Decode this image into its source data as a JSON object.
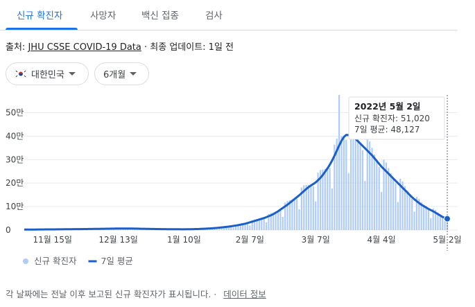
{
  "tabs": [
    "신규 확진자",
    "사망자",
    "백신 접종",
    "검사"
  ],
  "source": {
    "prefix": "출처:",
    "link": "JHU CSSE COVID-19 Data",
    "updated": "· 최종 업데이트: 1일 전"
  },
  "filters": [
    "대한민국",
    "6개월"
  ],
  "chart_data": {
    "type": "bar",
    "categories": [
      null,
      null,
      null,
      null,
      null,
      null,
      null,
      null,
      null,
      null,
      null,
      null,
      "11월 15일",
      null,
      null,
      null,
      null,
      null,
      null,
      null,
      null,
      null,
      null,
      null,
      null,
      null,
      null,
      null,
      null,
      null,
      null,
      null,
      null,
      null,
      null,
      null,
      null,
      null,
      null,
      null,
      "12월 13일",
      null,
      null,
      null,
      null,
      null,
      null,
      null,
      null,
      null,
      null,
      null,
      null,
      null,
      null,
      null,
      null,
      null,
      null,
      null,
      null,
      null,
      null,
      null,
      null,
      null,
      null,
      null,
      "1월 10일",
      null,
      null,
      null,
      null,
      null,
      null,
      null,
      null,
      null,
      null,
      null,
      null,
      null,
      null,
      null,
      null,
      null,
      null,
      null,
      null,
      null,
      null,
      null,
      null,
      null,
      null,
      null,
      "2월 7일",
      null,
      null,
      null,
      null,
      null,
      null,
      null,
      null,
      null,
      null,
      null,
      null,
      null,
      null,
      null,
      null,
      null,
      null,
      null,
      null,
      null,
      null,
      null,
      null,
      null,
      null,
      null,
      "3월 7일",
      null,
      null,
      null,
      null,
      null,
      null,
      null,
      null,
      null,
      null,
      null,
      null,
      null,
      null,
      null,
      null,
      null,
      null,
      null,
      null,
      null,
      null,
      null,
      null,
      null,
      null,
      null,
      "4월 4일",
      null,
      null,
      null,
      null,
      null,
      null,
      null,
      null,
      null,
      null,
      null,
      null,
      null,
      null,
      null,
      null,
      null,
      null,
      null,
      null,
      null,
      null,
      null,
      null,
      null,
      null,
      null,
      "5월 2일"
    ],
    "series": [
      {
        "name": "신규 확진자",
        "type": "bar",
        "color": "#aecbfa",
        "values": [
          2600,
          2600,
          2500,
          2400,
          2300,
          1400,
          2900,
          3000,
          3000,
          2900,
          2900,
          2900,
          1800,
          3600,
          3700,
          3600,
          3600,
          3500,
          3400,
          2200,
          4400,
          4500,
          4400,
          4300,
          4200,
          4200,
          2700,
          5300,
          5500,
          5400,
          5300,
          5100,
          5000,
          3300,
          6400,
          6700,
          6600,
          6400,
          6300,
          6200,
          4000,
          7700,
          7800,
          7500,
          7000,
          6600,
          6200,
          3800,
          7000,
          6800,
          6300,
          5800,
          5300,
          4800,
          2900,
          5400,
          5200,
          4700,
          4400,
          4000,
          3700,
          2300,
          4300,
          4100,
          4000,
          3700,
          3500,
          3200,
          2000,
          4000,
          4100,
          4200,
          4200,
          4300,
          4400,
          3000,
          6300,
          6900,
          7300,
          7600,
          7900,
          8200,
          5600,
          11800,
          13000,
          13600,
          14300,
          14900,
          15500,
          10700,
          22300,
          24200,
          25300,
          26300,
          27000,
          28500,
          19800,
          41400,
          44900,
          46200,
          47300,
          48000,
          48500,
          33000,
          67900,
          72500,
          74800,
          77700,
          80000,
          82700,
          56400,
          116200,
          124200,
          127600,
          130200,
          132000,
          133000,
          88800,
          180600,
          190900,
          192500,
          192200,
          190000,
          186200,
          121800,
          243800,
          255300,
          257400,
          260400,
          262000,
          264100,
          177600,
          363400,
          388700,
          575000,
          399000,
          396000,
          384800,
          242400,
          460000,
          454300,
          426800,
          396900,
          368000,
          340100,
          208800,
          388700,
          377200,
          349800,
          321300,
          294000,
          267900,
          162000,
          299000,
          287500,
          264000,
          241500,
          220000,
          199500,
          120000,
          218500,
          207000,
          187000,
          168000,
          150000,
          133000,
          78600,
          141500,
          132300,
          118800,
          107100,
          96000,
          85500,
          51000,
          92000,
          85100,
          74800,
          65100,
          56000,
          49400,
          51020
        ]
      },
      {
        "name": "7일 평균",
        "type": "line",
        "color": "#1a5fc7",
        "values": [
          2300,
          2400,
          2400,
          2400,
          2400,
          2400,
          2500,
          2600,
          2700,
          2800,
          2900,
          3000,
          3000,
          3100,
          3200,
          3300,
          3400,
          3500,
          3600,
          3700,
          3800,
          3900,
          4000,
          4100,
          4200,
          4400,
          4500,
          4600,
          4800,
          4900,
          5000,
          5100,
          5300,
          5500,
          5600,
          5800,
          6000,
          6100,
          6300,
          6500,
          6600,
          6700,
          6800,
          6800,
          6700,
          6600,
          6500,
          6300,
          6100,
          5900,
          5700,
          5500,
          5300,
          5100,
          4900,
          4700,
          4500,
          4300,
          4200,
          4000,
          3900,
          3800,
          3700,
          3600,
          3600,
          3500,
          3500,
          3400,
          3400,
          3500,
          3600,
          3800,
          4000,
          4300,
          4600,
          5000,
          5500,
          6000,
          6600,
          7200,
          7900,
          8600,
          9400,
          10300,
          11300,
          12400,
          13600,
          14900,
          16300,
          17800,
          19400,
          21000,
          23000,
          25000,
          27000,
          30000,
          33000,
          36000,
          39000,
          42000,
          45000,
          48000,
          51000,
          55000,
          59000,
          63000,
          68000,
          74000,
          80000,
          87000,
          94000,
          101000,
          108000,
          116000,
          124000,
          132000,
          140000,
          148000,
          157000,
          166000,
          175000,
          183000,
          190000,
          196000,
          203000,
          212000,
          222000,
          234000,
          248000,
          262000,
          278000,
          296000,
          316000,
          338000,
          360000,
          380000,
          396000,
          405000,
          404000,
          400000,
          395000,
          388000,
          378000,
          368000,
          358000,
          348000,
          338000,
          328000,
          318000,
          306000,
          294000,
          282000,
          270000,
          260000,
          250000,
          240000,
          230000,
          220000,
          210000,
          200000,
          190000,
          180000,
          170000,
          160000,
          150000,
          140000,
          131000,
          123000,
          115000,
          108000,
          102000,
          96000,
          90000,
          85000,
          80000,
          74000,
          68000,
          62000,
          56000,
          52000,
          48127
        ]
      }
    ],
    "ylim": [
      0,
      575000
    ],
    "yticks": [
      0,
      {
        "value": 100000,
        "label": "10만"
      },
      {
        "value": 200000,
        "label": "20만"
      },
      {
        "value": 300000,
        "label": "30만"
      },
      {
        "value": 400000,
        "label": "40만"
      },
      {
        "value": 500000,
        "label": "50만"
      }
    ],
    "grid": true,
    "tooltip": {
      "title": "2022년 5월 2일",
      "lines": [
        "신규 확진자: 51,020",
        "7일 평균: 48,127"
      ]
    }
  },
  "footer": {
    "note": "각 날짜에는 전날 이후 보고된 신규 확진자가 표시됩니다.",
    "link": "데이터 정보"
  }
}
